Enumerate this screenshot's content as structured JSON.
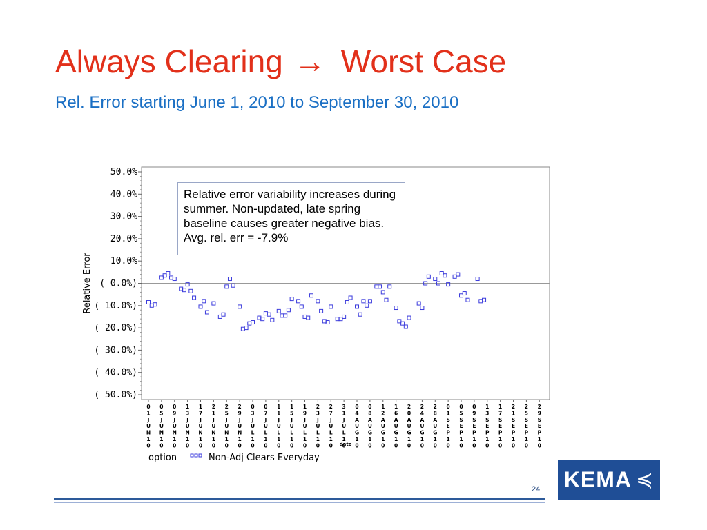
{
  "slide": {
    "title_left": "Always Clearing",
    "title_arrow": "→",
    "title_right": "Worst Case",
    "subtitle": "Rel. Error starting June 1, 2010 to September 30, 2010",
    "page_number": "24",
    "logo_text": "KEMA",
    "logo_mark": "≼",
    "colors": {
      "title": "#e2301a",
      "subtitle": "#1a6fc4",
      "marker": "#3a3adc",
      "footer": "#2d5a9a"
    }
  },
  "callout": {
    "text": "Relative error variability increases during summer. Non-updated, late spring baseline causes greater negative bias.  Avg. rel. err = -7.9%"
  },
  "chart_data": {
    "type": "scatter",
    "ylabel": "Relative Error",
    "xlabel": "date",
    "ylim": [
      -0.5,
      0.5
    ],
    "y_ticks": [
      "50.0%",
      "40.0%",
      "30.0%",
      "20.0%",
      "10.0%",
      "( 0.0%)",
      "( 10.0%)",
      "( 20.0%)",
      "( 30.0%)",
      "( 40.0%)",
      "( 50.0%)"
    ],
    "x_range": [
      "2010-06-01",
      "2010-09-30"
    ],
    "x_ticks": [
      "01JUN10",
      "05JUN10",
      "09JUN10",
      "13JUN10",
      "17JUN10",
      "21JUN10",
      "25JUN10",
      "29JUN10",
      "03JUL10",
      "07JUL10",
      "11JUL10",
      "15JUL10",
      "19JUL10",
      "23JUL10",
      "27JUL10",
      "31JUL10",
      "04AUG10",
      "08AUG10",
      "12AUG10",
      "16AUG10",
      "20AUG10",
      "24AUG10",
      "28AUG10",
      "01SEP10",
      "05SEP10",
      "09SEP10",
      "13SEP10",
      "17SEP10",
      "21SEP10",
      "25SEP10",
      "29SEP10"
    ],
    "grid": false,
    "reference_line": 0,
    "legend_title": "option",
    "legend": [
      {
        "name": "Non-Adj Clears Everyday"
      }
    ],
    "series": [
      {
        "name": "Non-Adj Clears Everyday",
        "points": [
          [
            "2010-06-01",
            -0.085
          ],
          [
            "2010-06-02",
            -0.1
          ],
          [
            "2010-06-03",
            -0.095
          ],
          [
            "2010-06-05",
            0.025
          ],
          [
            "2010-06-06",
            0.035
          ],
          [
            "2010-06-07",
            0.045
          ],
          [
            "2010-06-08",
            0.025
          ],
          [
            "2010-06-09",
            0.02
          ],
          [
            "2010-06-11",
            -0.025
          ],
          [
            "2010-06-12",
            -0.03
          ],
          [
            "2010-06-13",
            -0.005
          ],
          [
            "2010-06-14",
            -0.035
          ],
          [
            "2010-06-15",
            -0.065
          ],
          [
            "2010-06-17",
            -0.105
          ],
          [
            "2010-06-18",
            -0.08
          ],
          [
            "2010-06-19",
            -0.13
          ],
          [
            "2010-06-21",
            -0.09
          ],
          [
            "2010-06-23",
            -0.15
          ],
          [
            "2010-06-24",
            -0.14
          ],
          [
            "2010-06-25",
            -0.015
          ],
          [
            "2010-06-26",
            0.02
          ],
          [
            "2010-06-27",
            -0.01
          ],
          [
            "2010-06-29",
            -0.105
          ],
          [
            "2010-06-30",
            -0.205
          ],
          [
            "2010-07-01",
            -0.2
          ],
          [
            "2010-07-02",
            -0.18
          ],
          [
            "2010-07-03",
            -0.175
          ],
          [
            "2010-07-05",
            -0.155
          ],
          [
            "2010-07-06",
            -0.16
          ],
          [
            "2010-07-07",
            -0.135
          ],
          [
            "2010-07-08",
            -0.14
          ],
          [
            "2010-07-09",
            -0.165
          ],
          [
            "2010-07-11",
            -0.125
          ],
          [
            "2010-07-12",
            -0.145
          ],
          [
            "2010-07-13",
            -0.145
          ],
          [
            "2010-07-14",
            -0.12
          ],
          [
            "2010-07-15",
            -0.07
          ],
          [
            "2010-07-17",
            -0.08
          ],
          [
            "2010-07-18",
            -0.105
          ],
          [
            "2010-07-19",
            -0.15
          ],
          [
            "2010-07-20",
            -0.155
          ],
          [
            "2010-07-21",
            -0.055
          ],
          [
            "2010-07-23",
            -0.08
          ],
          [
            "2010-07-24",
            -0.125
          ],
          [
            "2010-07-25",
            -0.17
          ],
          [
            "2010-07-26",
            -0.175
          ],
          [
            "2010-07-27",
            -0.105
          ],
          [
            "2010-07-29",
            -0.16
          ],
          [
            "2010-07-30",
            -0.16
          ],
          [
            "2010-07-31",
            -0.15
          ],
          [
            "2010-08-01",
            -0.085
          ],
          [
            "2010-08-02",
            -0.065
          ],
          [
            "2010-08-04",
            -0.105
          ],
          [
            "2010-08-05",
            -0.14
          ],
          [
            "2010-08-06",
            -0.08
          ],
          [
            "2010-08-07",
            -0.1
          ],
          [
            "2010-08-08",
            -0.08
          ],
          [
            "2010-08-10",
            -0.015
          ],
          [
            "2010-08-11",
            -0.015
          ],
          [
            "2010-08-12",
            -0.04
          ],
          [
            "2010-08-13",
            -0.075
          ],
          [
            "2010-08-14",
            -0.015
          ],
          [
            "2010-08-16",
            -0.11
          ],
          [
            "2010-08-17",
            -0.17
          ],
          [
            "2010-08-18",
            -0.18
          ],
          [
            "2010-08-19",
            -0.195
          ],
          [
            "2010-08-20",
            -0.155
          ],
          [
            "2010-08-23",
            -0.09
          ],
          [
            "2010-08-24",
            -0.11
          ],
          [
            "2010-08-25",
            0.0
          ],
          [
            "2010-08-26",
            0.03
          ],
          [
            "2010-08-28",
            0.02
          ],
          [
            "2010-08-29",
            0.0
          ],
          [
            "2010-08-30",
            0.045
          ],
          [
            "2010-08-31",
            0.035
          ],
          [
            "2010-09-01",
            -0.005
          ],
          [
            "2010-09-03",
            0.03
          ],
          [
            "2010-09-04",
            0.04
          ],
          [
            "2010-09-05",
            -0.055
          ],
          [
            "2010-09-06",
            -0.045
          ],
          [
            "2010-09-07",
            -0.075
          ],
          [
            "2010-09-10",
            0.02
          ],
          [
            "2010-09-11",
            -0.08
          ],
          [
            "2010-09-12",
            -0.075
          ]
        ]
      }
    ]
  }
}
